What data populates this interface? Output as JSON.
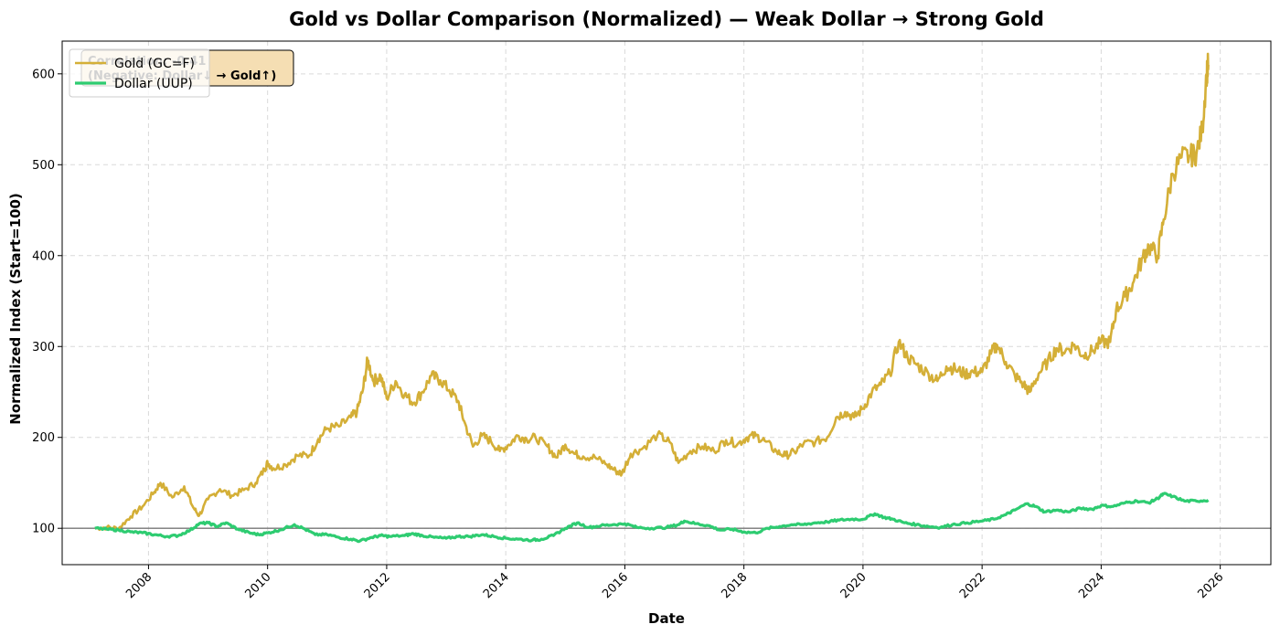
{
  "chart_data": {
    "type": "line",
    "title": "Gold vs Dollar Comparison (Normalized) — Weak Dollar → Strong Gold",
    "xlabel": "Date",
    "ylabel": "Normalized Index (Start=100)",
    "xlim": [
      2006.55,
      2026.85
    ],
    "ylim": [
      60,
      636
    ],
    "x_ticks": [
      2008,
      2010,
      2012,
      2014,
      2016,
      2018,
      2020,
      2022,
      2024,
      2026
    ],
    "y_ticks": [
      100,
      200,
      300,
      400,
      500,
      600
    ],
    "grid": true,
    "legend_position": "top-left",
    "reference_line": 100,
    "annotation_lines": [
      "Correlation: -0.41",
      "(Negative: Dollar↓ → Gold↑)"
    ],
    "colors": {
      "gold": "#D4AF37",
      "dollar": "#2ECC71",
      "annotation_bg": "#F5DEB3",
      "reference": "#777777"
    },
    "series": [
      {
        "name": "Gold (GC=F)",
        "key": "gold",
        "points": [
          [
            2007.1,
            100
          ],
          [
            2007.3,
            101
          ],
          [
            2007.5,
            100
          ],
          [
            2007.7,
            113
          ],
          [
            2007.9,
            124
          ],
          [
            2008.1,
            140
          ],
          [
            2008.2,
            150
          ],
          [
            2008.4,
            134
          ],
          [
            2008.6,
            146
          ],
          [
            2008.75,
            123
          ],
          [
            2008.85,
            114
          ],
          [
            2009.0,
            132
          ],
          [
            2009.2,
            143
          ],
          [
            2009.4,
            136
          ],
          [
            2009.6,
            142
          ],
          [
            2009.8,
            150
          ],
          [
            2009.95,
            165
          ],
          [
            2010.0,
            172
          ],
          [
            2010.1,
            166
          ],
          [
            2010.3,
            170
          ],
          [
            2010.5,
            180
          ],
          [
            2010.7,
            180
          ],
          [
            2010.85,
            198
          ],
          [
            2011.0,
            210
          ],
          [
            2011.2,
            212
          ],
          [
            2011.4,
            222
          ],
          [
            2011.5,
            228
          ],
          [
            2011.6,
            252
          ],
          [
            2011.68,
            285
          ],
          [
            2011.78,
            262
          ],
          [
            2011.9,
            268
          ],
          [
            2012.0,
            243
          ],
          [
            2012.15,
            262
          ],
          [
            2012.3,
            247
          ],
          [
            2012.45,
            238
          ],
          [
            2012.6,
            250
          ],
          [
            2012.75,
            268
          ],
          [
            2012.9,
            263
          ],
          [
            2013.05,
            252
          ],
          [
            2013.2,
            240
          ],
          [
            2013.3,
            218
          ],
          [
            2013.45,
            190
          ],
          [
            2013.6,
            202
          ],
          [
            2013.75,
            196
          ],
          [
            2013.9,
            185
          ],
          [
            2014.05,
            192
          ],
          [
            2014.2,
            202
          ],
          [
            2014.35,
            198
          ],
          [
            2014.5,
            200
          ],
          [
            2014.7,
            190
          ],
          [
            2014.85,
            178
          ],
          [
            2015.0,
            192
          ],
          [
            2015.15,
            182
          ],
          [
            2015.3,
            179
          ],
          [
            2015.5,
            178
          ],
          [
            2015.7,
            170
          ],
          [
            2015.85,
            163
          ],
          [
            2015.95,
            160
          ],
          [
            2016.1,
            182
          ],
          [
            2016.3,
            188
          ],
          [
            2016.55,
            203
          ],
          [
            2016.75,
            195
          ],
          [
            2016.9,
            172
          ],
          [
            2017.1,
            185
          ],
          [
            2017.3,
            190
          ],
          [
            2017.5,
            185
          ],
          [
            2017.7,
            197
          ],
          [
            2017.9,
            193
          ],
          [
            2018.05,
            200
          ],
          [
            2018.2,
            202
          ],
          [
            2018.35,
            196
          ],
          [
            2018.55,
            184
          ],
          [
            2018.7,
            180
          ],
          [
            2018.85,
            184
          ],
          [
            2019.0,
            193
          ],
          [
            2019.2,
            195
          ],
          [
            2019.4,
            200
          ],
          [
            2019.55,
            222
          ],
          [
            2019.7,
            228
          ],
          [
            2019.85,
            222
          ],
          [
            2020.0,
            232
          ],
          [
            2020.15,
            250
          ],
          [
            2020.3,
            258
          ],
          [
            2020.45,
            270
          ],
          [
            2020.6,
            305
          ],
          [
            2020.75,
            288
          ],
          [
            2020.9,
            280
          ],
          [
            2021.1,
            270
          ],
          [
            2021.25,
            262
          ],
          [
            2021.4,
            278
          ],
          [
            2021.55,
            275
          ],
          [
            2021.7,
            270
          ],
          [
            2021.85,
            272
          ],
          [
            2022.0,
            272
          ],
          [
            2022.15,
            292
          ],
          [
            2022.25,
            302
          ],
          [
            2022.4,
            283
          ],
          [
            2022.55,
            268
          ],
          [
            2022.7,
            258
          ],
          [
            2022.8,
            250
          ],
          [
            2022.95,
            270
          ],
          [
            2023.1,
            283
          ],
          [
            2023.25,
            298
          ],
          [
            2023.4,
            295
          ],
          [
            2023.55,
            302
          ],
          [
            2023.7,
            290
          ],
          [
            2023.85,
            295
          ],
          [
            2024.0,
            305
          ],
          [
            2024.15,
            305
          ],
          [
            2024.25,
            340
          ],
          [
            2024.4,
            355
          ],
          [
            2024.55,
            372
          ],
          [
            2024.7,
            398
          ],
          [
            2024.8,
            410
          ],
          [
            2024.95,
            400
          ],
          [
            2025.05,
            440
          ],
          [
            2025.2,
            490
          ],
          [
            2025.35,
            508
          ],
          [
            2025.5,
            510
          ],
          [
            2025.6,
            512
          ],
          [
            2025.7,
            540
          ],
          [
            2025.77,
            600
          ],
          [
            2025.8,
            610
          ]
        ]
      },
      {
        "name": "Dollar (UUP)",
        "key": "dollar",
        "points": [
          [
            2007.1,
            100
          ],
          [
            2007.3,
            99
          ],
          [
            2007.5,
            98
          ],
          [
            2007.7,
            96
          ],
          [
            2007.9,
            95
          ],
          [
            2008.1,
            93
          ],
          [
            2008.3,
            91
          ],
          [
            2008.5,
            92
          ],
          [
            2008.7,
            98
          ],
          [
            2008.85,
            105
          ],
          [
            2009.0,
            106
          ],
          [
            2009.15,
            102
          ],
          [
            2009.3,
            106
          ],
          [
            2009.5,
            99
          ],
          [
            2009.7,
            95
          ],
          [
            2009.85,
            93
          ],
          [
            2010.0,
            95
          ],
          [
            2010.2,
            98
          ],
          [
            2010.45,
            104
          ],
          [
            2010.6,
            100
          ],
          [
            2010.8,
            93
          ],
          [
            2011.0,
            93
          ],
          [
            2011.2,
            90
          ],
          [
            2011.4,
            88
          ],
          [
            2011.55,
            86
          ],
          [
            2011.75,
            90
          ],
          [
            2011.9,
            92
          ],
          [
            2012.05,
            91
          ],
          [
            2012.3,
            92
          ],
          [
            2012.45,
            94
          ],
          [
            2012.6,
            92
          ],
          [
            2012.8,
            90
          ],
          [
            2013.0,
            89
          ],
          [
            2013.2,
            91
          ],
          [
            2013.4,
            91
          ],
          [
            2013.6,
            93
          ],
          [
            2013.8,
            91
          ],
          [
            2014.0,
            89
          ],
          [
            2014.2,
            88
          ],
          [
            2014.45,
            87
          ],
          [
            2014.6,
            88
          ],
          [
            2014.8,
            92
          ],
          [
            2015.0,
            100
          ],
          [
            2015.2,
            106
          ],
          [
            2015.4,
            101
          ],
          [
            2015.6,
            103
          ],
          [
            2015.8,
            104
          ],
          [
            2016.0,
            105
          ],
          [
            2016.2,
            101
          ],
          [
            2016.45,
            100
          ],
          [
            2016.7,
            101
          ],
          [
            2016.9,
            104
          ],
          [
            2017.0,
            108
          ],
          [
            2017.2,
            105
          ],
          [
            2017.4,
            103
          ],
          [
            2017.6,
            98
          ],
          [
            2017.8,
            99
          ],
          [
            2018.0,
            96
          ],
          [
            2018.2,
            95
          ],
          [
            2018.4,
            100
          ],
          [
            2018.6,
            102
          ],
          [
            2018.8,
            104
          ],
          [
            2019.0,
            104
          ],
          [
            2019.2,
            106
          ],
          [
            2019.4,
            107
          ],
          [
            2019.6,
            109
          ],
          [
            2019.8,
            110
          ],
          [
            2020.0,
            110
          ],
          [
            2020.2,
            116
          ],
          [
            2020.35,
            112
          ],
          [
            2020.5,
            110
          ],
          [
            2020.7,
            106
          ],
          [
            2020.9,
            104
          ],
          [
            2021.1,
            102
          ],
          [
            2021.3,
            101
          ],
          [
            2021.5,
            104
          ],
          [
            2021.75,
            106
          ],
          [
            2022.0,
            108
          ],
          [
            2022.2,
            110
          ],
          [
            2022.4,
            115
          ],
          [
            2022.55,
            120
          ],
          [
            2022.75,
            127
          ],
          [
            2022.9,
            124
          ],
          [
            2023.05,
            118
          ],
          [
            2023.25,
            120
          ],
          [
            2023.45,
            118
          ],
          [
            2023.65,
            122
          ],
          [
            2023.85,
            121
          ],
          [
            2024.0,
            125
          ],
          [
            2024.2,
            124
          ],
          [
            2024.4,
            128
          ],
          [
            2024.6,
            130
          ],
          [
            2024.8,
            128
          ],
          [
            2024.95,
            133
          ],
          [
            2025.05,
            138
          ],
          [
            2025.2,
            135
          ],
          [
            2025.4,
            130
          ],
          [
            2025.6,
            130
          ],
          [
            2025.8,
            131
          ]
        ]
      }
    ]
  }
}
